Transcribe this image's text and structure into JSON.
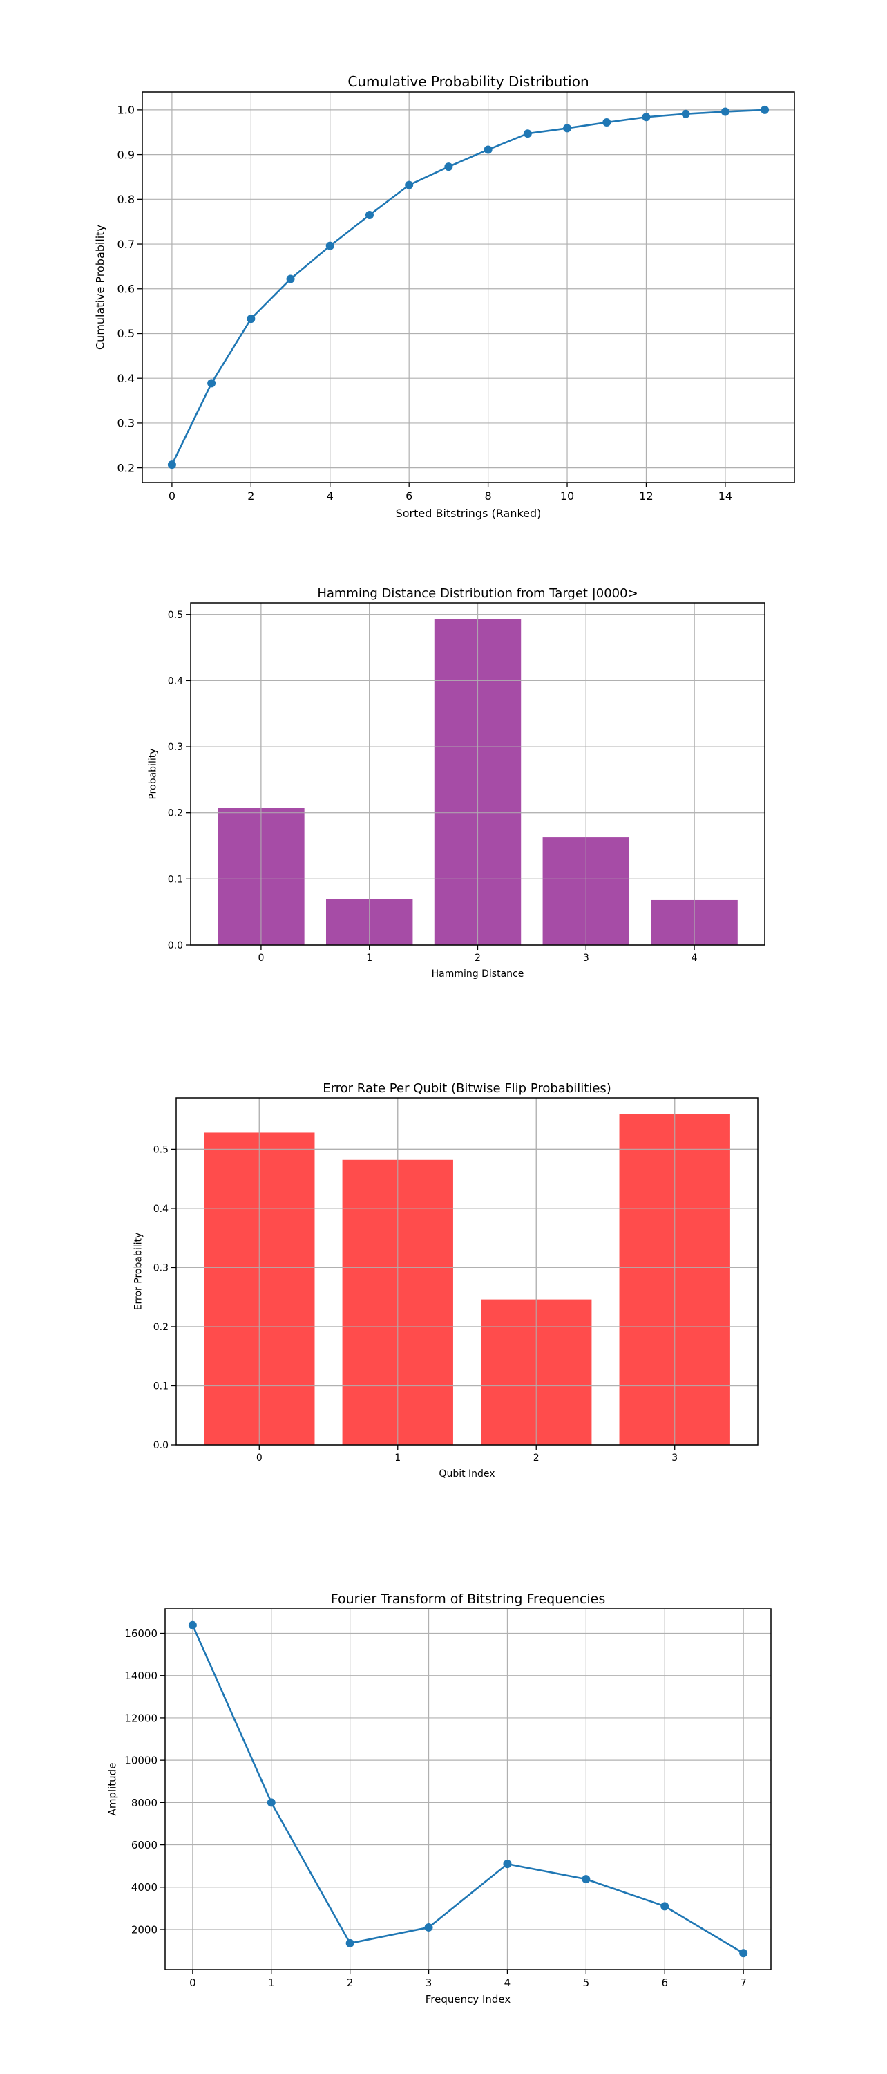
{
  "colors": {
    "line_blue": "#1f77b4",
    "bar_purple": "#a64ca6",
    "bar_red": "#ff4c4c",
    "grid": "#b0b0b0",
    "axis": "#000000"
  },
  "chart_data": [
    {
      "id": "cumulative",
      "type": "line",
      "title": "Cumulative Probability Distribution",
      "xlabel": "Sorted Bitstrings (Ranked)",
      "ylabel": "Cumulative Probability",
      "x": [
        0,
        1,
        2,
        3,
        4,
        5,
        6,
        7,
        8,
        9,
        10,
        11,
        12,
        13,
        14,
        15
      ],
      "series": [
        {
          "values": [
            0.207,
            0.389,
            0.533,
            0.622,
            0.696,
            0.765,
            0.832,
            0.873,
            0.911,
            0.947,
            0.959,
            0.972,
            0.984,
            0.991,
            0.996,
            1.0
          ]
        }
      ],
      "xlim": [
        -0.75,
        15.75
      ],
      "ylim": [
        0.167,
        1.04
      ],
      "xticks": [
        0,
        2,
        4,
        6,
        8,
        10,
        12,
        14
      ],
      "xtick_labels": [
        "0",
        "2",
        "4",
        "6",
        "8",
        "10",
        "12",
        "14"
      ],
      "yticks": [
        0.2,
        0.3,
        0.4,
        0.5,
        0.6,
        0.7,
        0.8,
        0.9,
        1.0
      ],
      "ytick_labels": [
        "0.2",
        "0.3",
        "0.4",
        "0.5",
        "0.6",
        "0.7",
        "0.8",
        "0.9",
        "1.0"
      ],
      "grid": true,
      "markers": true,
      "color": "#1f77b4"
    },
    {
      "id": "hamming",
      "type": "bar",
      "title": "Hamming Distance Distribution from Target |0000>",
      "xlabel": "Hamming Distance",
      "ylabel": "Probability",
      "categories": [
        "0",
        "1",
        "2",
        "3",
        "4"
      ],
      "values": [
        0.207,
        0.07,
        0.493,
        0.163,
        0.068
      ],
      "xlim": [
        -0.65,
        4.65
      ],
      "ylim": [
        0,
        0.5175
      ],
      "yticks": [
        0.0,
        0.1,
        0.2,
        0.3,
        0.4,
        0.5
      ],
      "ytick_labels": [
        "0.0",
        "0.1",
        "0.2",
        "0.3",
        "0.4",
        "0.5"
      ],
      "bar_width": 0.8,
      "grid": true,
      "color": "#a64ca6"
    },
    {
      "id": "error-rate",
      "type": "bar",
      "title": "Error Rate Per Qubit (Bitwise Flip Probabilities)",
      "xlabel": "Qubit Index",
      "ylabel": "Error Probability",
      "categories": [
        "0",
        "1",
        "2",
        "3"
      ],
      "values": [
        0.528,
        0.482,
        0.246,
        0.559
      ],
      "xlim": [
        -0.6,
        3.6
      ],
      "ylim": [
        0,
        0.587
      ],
      "yticks": [
        0.0,
        0.1,
        0.2,
        0.3,
        0.4,
        0.5
      ],
      "ytick_labels": [
        "0.0",
        "0.1",
        "0.2",
        "0.3",
        "0.4",
        "0.5"
      ],
      "bar_width": 0.8,
      "grid": true,
      "color": "#ff4c4c"
    },
    {
      "id": "fourier",
      "type": "line",
      "title": "Fourier Transform of Bitstring Frequencies",
      "xlabel": "Frequency Index",
      "ylabel": "Amplitude",
      "x": [
        0,
        1,
        2,
        3,
        4,
        5,
        6,
        7
      ],
      "series": [
        {
          "values": [
            16384,
            8000,
            1350,
            2100,
            5100,
            4380,
            3100,
            880
          ]
        }
      ],
      "xlim": [
        -0.35,
        7.35
      ],
      "ylim": [
        105,
        17160
      ],
      "xticks": [
        0,
        1,
        2,
        3,
        4,
        5,
        6,
        7
      ],
      "xtick_labels": [
        "0",
        "1",
        "2",
        "3",
        "4",
        "5",
        "6",
        "7"
      ],
      "yticks": [
        2000,
        4000,
        6000,
        8000,
        10000,
        12000,
        14000,
        16000
      ],
      "ytick_labels": [
        "2000",
        "4000",
        "6000",
        "8000",
        "10000",
        "12000",
        "14000",
        "16000"
      ],
      "grid": true,
      "markers": true,
      "color": "#1f77b4"
    }
  ]
}
